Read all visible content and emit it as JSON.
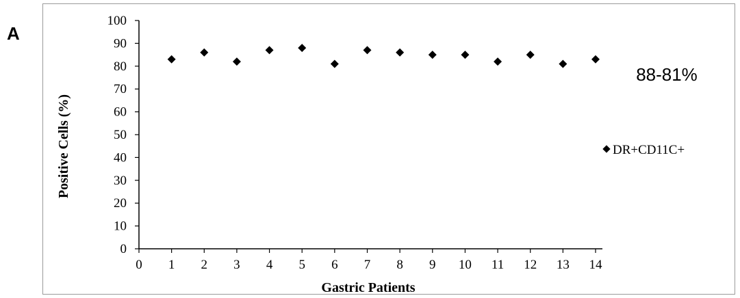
{
  "panel_label": "A",
  "chart_data": {
    "type": "scatter",
    "title": "",
    "xlabel": "Gastric Patients",
    "ylabel": "Positive Cells (%)",
    "xlim": [
      0,
      14
    ],
    "ylim": [
      0,
      100
    ],
    "x_ticks": [
      0,
      1,
      2,
      3,
      4,
      5,
      6,
      7,
      8,
      9,
      10,
      11,
      12,
      13,
      14
    ],
    "y_ticks": [
      0,
      10,
      20,
      30,
      40,
      50,
      60,
      70,
      80,
      90,
      100
    ],
    "grid": false,
    "legend_position": "right",
    "annotation": "88-81%",
    "series": [
      {
        "name": "DR+CD11C+",
        "marker": "diamond",
        "color": "#000000",
        "x": [
          1,
          2,
          3,
          4,
          5,
          6,
          7,
          8,
          9,
          10,
          11,
          12,
          13,
          14
        ],
        "y": [
          83,
          86,
          82,
          87,
          88,
          81,
          87,
          86,
          85,
          85,
          82,
          85,
          81,
          83
        ]
      }
    ]
  }
}
